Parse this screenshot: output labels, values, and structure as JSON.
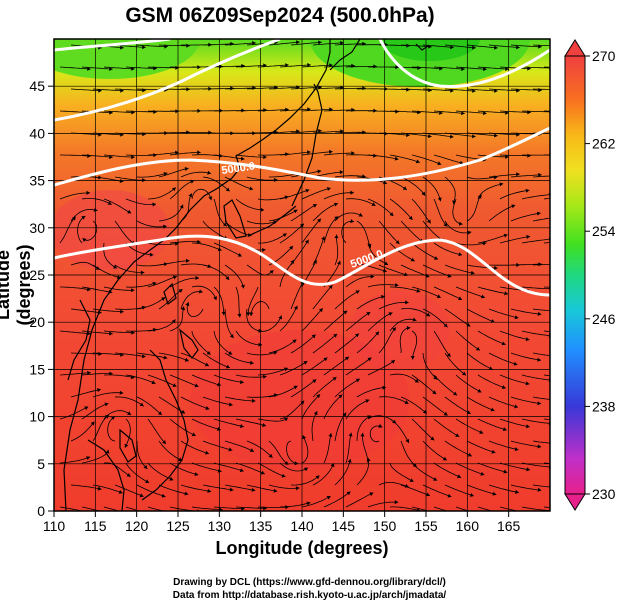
{
  "title": "GSM 06Z09Sep2024 (500.0hPa)",
  "axes": {
    "xlabel": "Longitude (degrees)",
    "ylabel": "Latitude  (degrees)",
    "x_ticks": [
      "110",
      "115",
      "120",
      "125",
      "130",
      "135",
      "140",
      "145",
      "150",
      "155",
      "160",
      "165"
    ],
    "y_ticks": [
      "0",
      "5",
      "10",
      "15",
      "20",
      "25",
      "30",
      "35",
      "40",
      "45"
    ],
    "x_range": [
      110,
      170
    ],
    "y_range": [
      0,
      50
    ]
  },
  "colorbar": {
    "labels": [
      "270",
      "262",
      "254",
      "246",
      "238",
      "230"
    ],
    "range": [
      230,
      270
    ],
    "colors": [
      "#e8208c",
      "#c030c8",
      "#3838d8",
      "#2090ff",
      "#18c8d8",
      "#20d880",
      "#40e020",
      "#a8e818",
      "#f0e020",
      "#f8b818",
      "#f87020",
      "#f04828",
      "#f04040"
    ]
  },
  "contour_labels": [
    "5000.0",
    "5000.0"
  ],
  "credits": {
    "line1": "Drawing by DCL (https://www.gfd-dennou.org/library/dcl/)",
    "line2": "Data from http://database.rish.kyoto-u.ac.jp/arch/jmadata/"
  }
}
